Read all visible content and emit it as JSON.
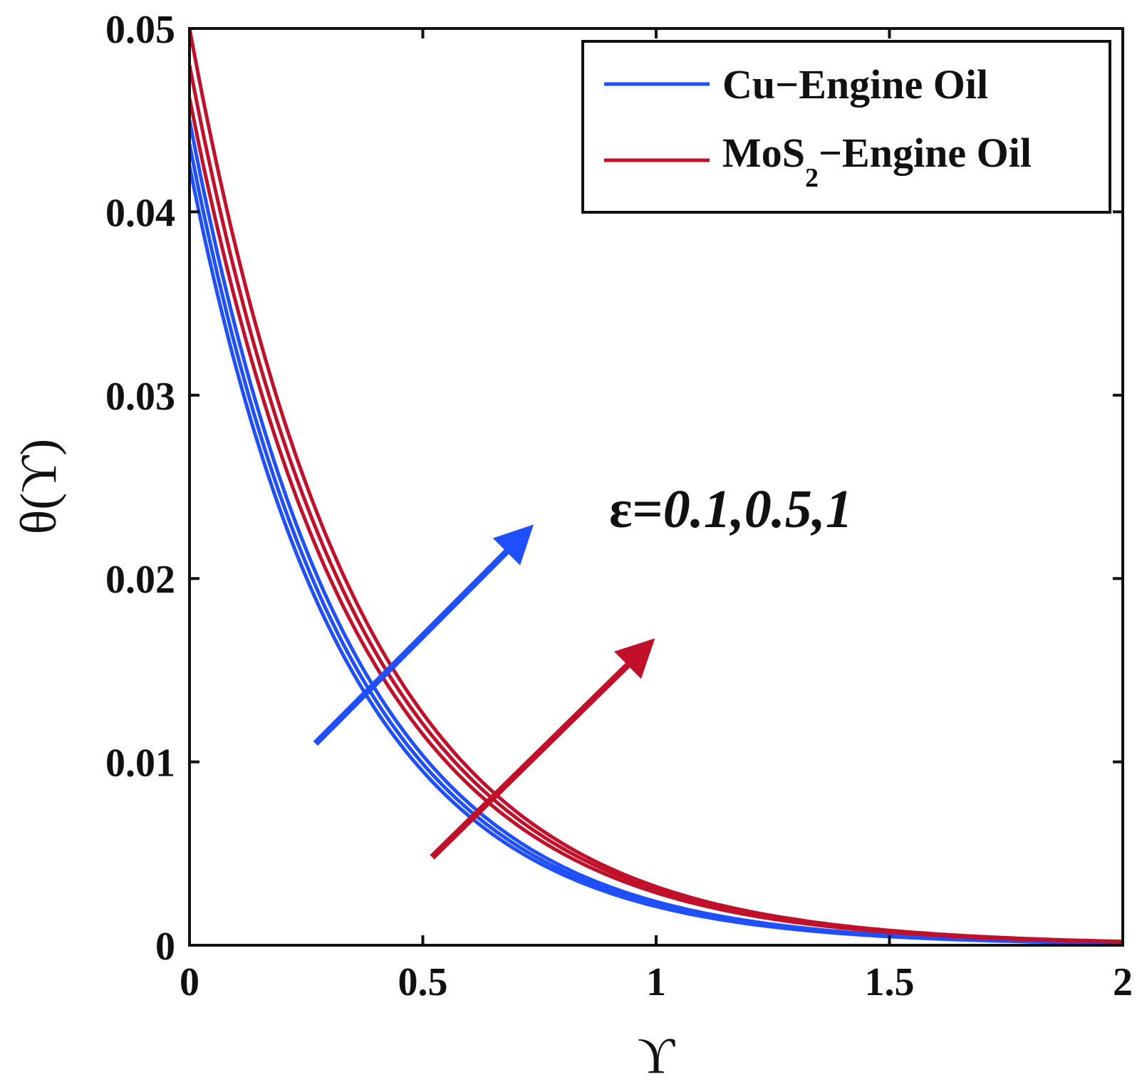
{
  "chart_data": {
    "type": "line",
    "title": "",
    "xlabel": "ϒ",
    "ylabel": "θ(ϒ)",
    "xlim": [
      0,
      2
    ],
    "ylim": [
      0,
      0.05
    ],
    "xticks": [
      0,
      0.5,
      1,
      1.5,
      2
    ],
    "xtick_labels": [
      "0",
      "0.5",
      "1",
      "1.5",
      "2"
    ],
    "yticks": [
      0,
      0.01,
      0.02,
      0.03,
      0.04,
      0.05
    ],
    "ytick_labels": [
      "0",
      "0.01",
      "0.02",
      "0.03",
      "0.04",
      "0.05"
    ],
    "grid": false,
    "legend": {
      "position": "top-right",
      "entries": [
        {
          "label": "Cu−Engine Oil",
          "color": "#1f4fff"
        },
        {
          "label_main": "MoS",
          "label_sub": "2",
          "label_rest": "−Engine Oil",
          "color": "#c0102a"
        }
      ]
    },
    "annotation": {
      "prefix": "ε=",
      "values": "0.1,0.5,1"
    },
    "arrows": [
      {
        "color": "#1f4fff",
        "from": [
          0.27,
          0.011
        ],
        "to": [
          0.72,
          0.0225
        ]
      },
      {
        "color": "#c0102a",
        "from": [
          0.52,
          0.0048
        ],
        "to": [
          0.98,
          0.0163
        ]
      }
    ],
    "series": [
      {
        "name": "Cu−Engine Oil, ε=0.1",
        "group": "Cu",
        "color": "#1f4fff",
        "y0": 0.0425,
        "decay": 3.0
      },
      {
        "name": "Cu−Engine Oil, ε=0.5",
        "group": "Cu",
        "color": "#1f4fff",
        "y0": 0.0437,
        "decay": 2.97
      },
      {
        "name": "Cu−Engine Oil, ε=1",
        "group": "Cu",
        "color": "#1f4fff",
        "y0": 0.045,
        "decay": 2.94
      },
      {
        "name": "MoS2−Engine Oil, ε=0.1",
        "group": "MoS2",
        "color": "#c0102a",
        "y0": 0.0462,
        "decay": 2.78
      },
      {
        "name": "MoS2−Engine Oil, ε=0.5",
        "group": "MoS2",
        "color": "#c0102a",
        "y0": 0.048,
        "decay": 2.76
      },
      {
        "name": "MoS2−Engine Oil, ε=1",
        "group": "MoS2",
        "color": "#c0102a",
        "y0": 0.05,
        "decay": 2.75
      }
    ]
  }
}
